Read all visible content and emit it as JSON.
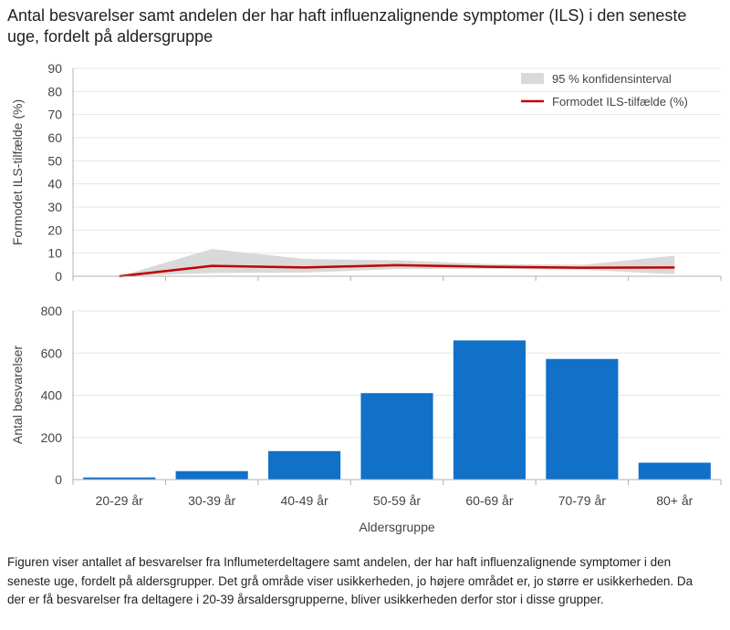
{
  "title": "Antal besvarelser samt andelen der har haft influenzalignende symptomer (ILS) i den seneste uge, fordelt på aldersgruppe",
  "caption": "Figuren viser antallet af besvarelser fra Influmeterdeltagere  samt andelen, der har haft influenzalignende symptomer i den seneste uge, fordelt på aldersgrupper. Det grå område viser usikkerheden,  jo højere området  er, jo større er usikkerheden.  Da der er få besvarelser fra deltagere i 20-39 årsaldersgrupperne, bliver usikkerheden derfor stor i disse grupper.",
  "colors": {
    "bar": "#1170c8",
    "line": "#c00000",
    "ci": "#d9d9d9",
    "grid": "#e6e6e6",
    "axis": "#b0b0b0"
  },
  "chart_data": [
    {
      "type": "line",
      "categories": [
        "20-29 år",
        "30-39 år",
        "40-49 år",
        "50-59 år",
        "60-69 år",
        "70-79 år",
        "80+ år"
      ],
      "ylabel": "Formodet ILS-tilfælde (%)",
      "ylim": [
        0,
        90
      ],
      "yticks": [
        0,
        10,
        20,
        30,
        40,
        50,
        60,
        70,
        80,
        90
      ],
      "grid": true,
      "legend_position": "top-right",
      "series": [
        {
          "name": "Formodet ILS-tilfælde (%)",
          "type": "line",
          "values": [
            0,
            4.5,
            3.8,
            4.8,
            4.1,
            3.7,
            3.8
          ]
        },
        {
          "name": "95 % konfidensinterval",
          "type": "band",
          "lower": [
            0,
            1.4,
            1.6,
            3.1,
            3.2,
            2.8,
            0.9
          ],
          "upper": [
            0,
            11.8,
            7.5,
            6.9,
            5.3,
            5.0,
            8.9
          ]
        }
      ]
    },
    {
      "type": "bar",
      "categories": [
        "20-29 år",
        "30-39 år",
        "40-49 år",
        "50-59 år",
        "60-69 år",
        "70-79 år",
        "80+ år"
      ],
      "values": [
        10,
        40,
        135,
        410,
        660,
        572,
        80
      ],
      "xlabel": "Aldersgruppe",
      "ylabel": "Antal besvarelser",
      "ylim": [
        0,
        800
      ],
      "yticks": [
        0,
        200,
        400,
        600,
        800
      ],
      "grid": true
    }
  ]
}
